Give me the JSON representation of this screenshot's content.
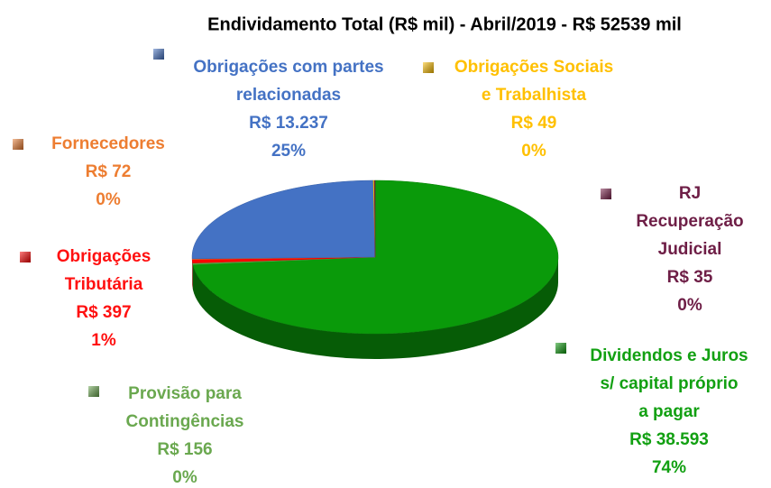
{
  "chart_data": {
    "type": "pie",
    "title": "Endividamento Total (R$ mil) - Abril/2019 -  R$ 52539 mil",
    "categories": [
      [
        "Dividendos e Juros",
        "s/ capital próprio",
        "a pagar"
      ],
      [
        "Provisão para",
        "Contingências"
      ],
      [
        "Obrigações",
        "Tributária"
      ],
      [
        "Fornecedores"
      ],
      [
        "Obrigações com partes",
        "relacionadas"
      ],
      [
        "Obrigações Sociais",
        "e Trabalhista"
      ],
      [
        "RJ",
        "Recuperação",
        "Judicial"
      ]
    ],
    "values": [
      38593,
      156,
      397,
      72,
      13237,
      49,
      35
    ],
    "value_labels": [
      "R$ 38.593",
      "R$ 156",
      "R$ 397",
      "R$ 72",
      "R$ 13.237",
      "R$ 49",
      "R$ 35"
    ],
    "percents": [
      74,
      0,
      1,
      0,
      25,
      0,
      0
    ],
    "percent_labels": [
      "74%",
      "0%",
      "1%",
      "0%",
      "25%",
      "0%",
      "0%"
    ],
    "colors": [
      "#0a9a0a",
      "#6aa84f",
      "#ff0000",
      "#ed7d31",
      "#4472c4",
      "#ffc000",
      "#7a1f4a"
    ],
    "label_colors": [
      "#12a012",
      "#6aa84f",
      "#ff1010",
      "#ed7d31",
      "#4472c4",
      "#ffc000",
      "#6e1e46"
    ]
  }
}
